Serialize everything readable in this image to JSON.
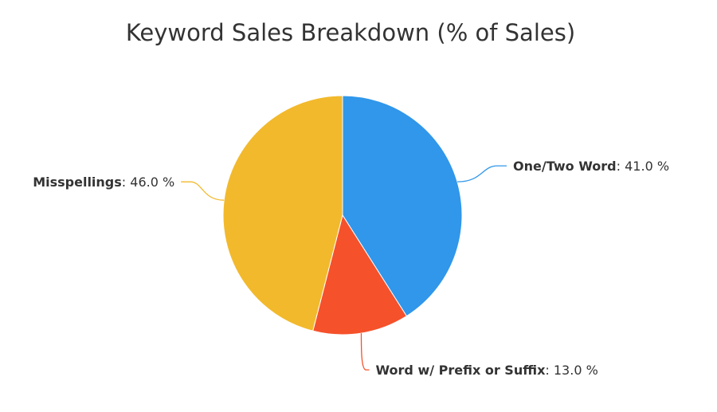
{
  "chart_data": {
    "type": "pie",
    "title": "Keyword Sales Breakdown (% of Sales)",
    "slices": [
      {
        "name": "One/Two Word",
        "value": 41.0,
        "display": "41.0 %",
        "color": "#3097EA"
      },
      {
        "name": "Word w/ Prefix or Suffix",
        "value": 13.0,
        "display": "13.0 %",
        "color": "#F5512B"
      },
      {
        "name": "Misspellings",
        "value": 46.0,
        "display": "46.0 %",
        "color": "#F2B92C"
      }
    ],
    "start_angle_deg": 0,
    "direction": "clockwise",
    "legend": "none",
    "labels": "outside with leader lines"
  }
}
